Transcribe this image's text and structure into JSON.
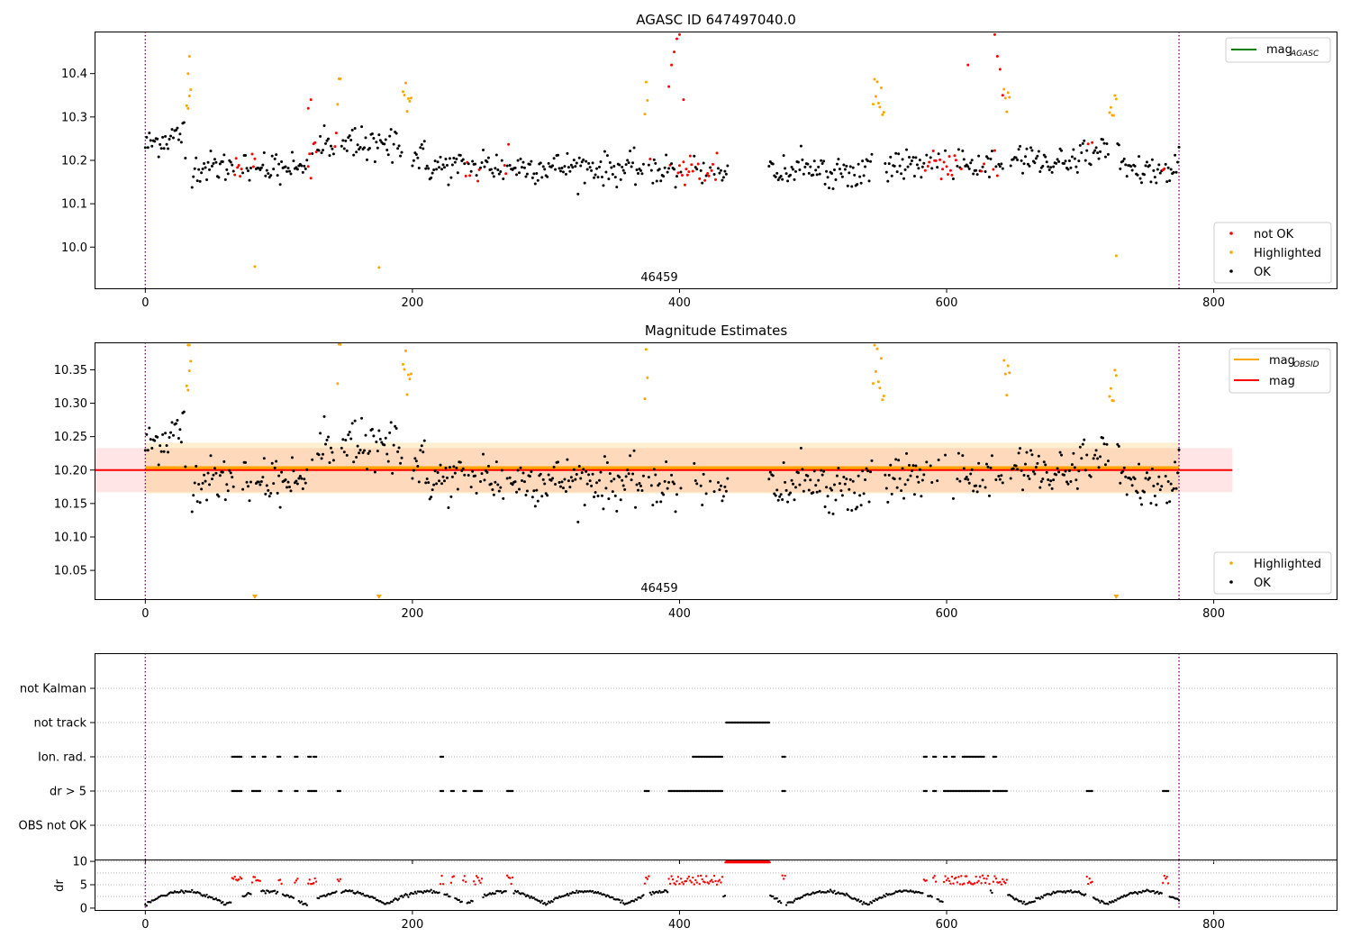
{
  "chart_data": [
    {
      "type": "scatter",
      "title": "AGASC ID 647497040.0",
      "xlim": [
        -38,
        892
      ],
      "ylim": [
        9.905,
        10.497
      ],
      "x_ticks": [
        0,
        200,
        400,
        600,
        800
      ],
      "y_ticks": [
        10.0,
        10.1,
        10.2,
        10.3,
        10.4
      ],
      "y_tick_labels": [
        "10.0",
        "10.1",
        "10.2",
        "10.3",
        "10.4"
      ],
      "obsid_label": "46459",
      "obs_boundaries": [
        0,
        774
      ],
      "legend_lines": [
        {
          "name": "mag_AGASC",
          "text": "mag",
          "subscript": "AGASC",
          "color": "#008000"
        }
      ],
      "legend_points": [
        {
          "name": "not OK",
          "color": "#ff0000"
        },
        {
          "name": "Highlighted",
          "color": "#ffa500"
        },
        {
          "name": "OK",
          "color": "#000000"
        }
      ],
      "grid": false,
      "legend_placement": [
        "upper right",
        "lower right"
      ]
    },
    {
      "type": "scatter",
      "title": "Magnitude Estimates",
      "xlim": [
        -38,
        892
      ],
      "ylim": [
        10.007,
        10.391
      ],
      "x_ticks": [
        0,
        200,
        400,
        600,
        800
      ],
      "y_ticks": [
        10.05,
        10.1,
        10.15,
        10.2,
        10.25,
        10.3,
        10.35
      ],
      "y_tick_labels": [
        "10.05",
        "10.10",
        "10.15",
        "10.20",
        "10.25",
        "10.30",
        "10.35"
      ],
      "obsid_label": "46459",
      "obs_boundaries": [
        0,
        774
      ],
      "mag_line": {
        "y": 10.2,
        "x0": -38,
        "x1": 814,
        "band": [
          10.167,
          10.233
        ],
        "color": "#ff0000"
      },
      "mag_obsid_line": {
        "y": 10.203,
        "x0": 0,
        "x1": 774,
        "band": [
          10.165,
          10.241
        ],
        "color": "#ffa500"
      },
      "legend_lines": [
        {
          "name": "mag_OBSID",
          "text": "mag",
          "subscript": "OBSID",
          "color": "#ffa500"
        },
        {
          "name": "mag",
          "text": "mag",
          "subscript": "",
          "color": "#ff0000"
        }
      ],
      "legend_points": [
        {
          "name": "Highlighted",
          "color": "#ffa500"
        },
        {
          "name": "OK",
          "color": "#000000"
        }
      ],
      "grid": false,
      "legend_placement": [
        "upper right",
        "lower right"
      ]
    },
    {
      "type": "scatter",
      "title": "",
      "xlim": [
        -38,
        892
      ],
      "categories": [
        "not Kalman",
        "not track",
        "Ion. rad.",
        "dr > 5",
        "OBS not OK"
      ],
      "obs_boundaries": [
        0,
        774
      ],
      "flags": {
        "not track": [
          [
            435,
            467
          ]
        ],
        "Ion. rad.": [
          [
            65,
            72
          ],
          [
            80,
            82
          ],
          [
            88,
            90
          ],
          [
            99,
            101
          ],
          [
            112,
            114
          ],
          [
            122,
            124
          ],
          [
            126,
            128
          ],
          [
            221,
            223
          ],
          [
            410,
            432
          ],
          [
            477,
            479
          ],
          [
            583,
            585
          ],
          [
            590,
            592
          ],
          [
            598,
            600
          ],
          [
            604,
            606
          ],
          [
            612,
            628
          ],
          [
            635,
            637
          ]
        ],
        "dr > 5": [
          [
            65,
            72
          ],
          [
            80,
            86
          ],
          [
            100,
            102
          ],
          [
            112,
            114
          ],
          [
            122,
            128
          ],
          [
            144,
            146
          ],
          [
            221,
            223
          ],
          [
            229,
            231
          ],
          [
            238,
            240
          ],
          [
            246,
            252
          ],
          [
            271,
            275
          ],
          [
            374,
            377
          ],
          [
            392,
            432
          ],
          [
            477,
            479
          ],
          [
            583,
            585
          ],
          [
            590,
            592
          ],
          [
            598,
            632
          ],
          [
            635,
            645
          ],
          [
            705,
            709
          ],
          [
            762,
            766
          ]
        ]
      },
      "grid": true
    },
    {
      "type": "scatter",
      "title": "",
      "xlabel": "",
      "ylabel": "dr",
      "xlim": [
        -38,
        892
      ],
      "ylim": [
        -0.4,
        10.4
      ],
      "x_ticks": [
        0,
        200,
        400,
        600,
        800
      ],
      "y_ticks": [
        0,
        5,
        10
      ],
      "y_tick_labels": [
        "0",
        "5",
        "10"
      ],
      "obs_boundaries": [
        0,
        774
      ],
      "threshold": 5,
      "clip_value": 10,
      "legend_points": [],
      "grid": true
    }
  ]
}
